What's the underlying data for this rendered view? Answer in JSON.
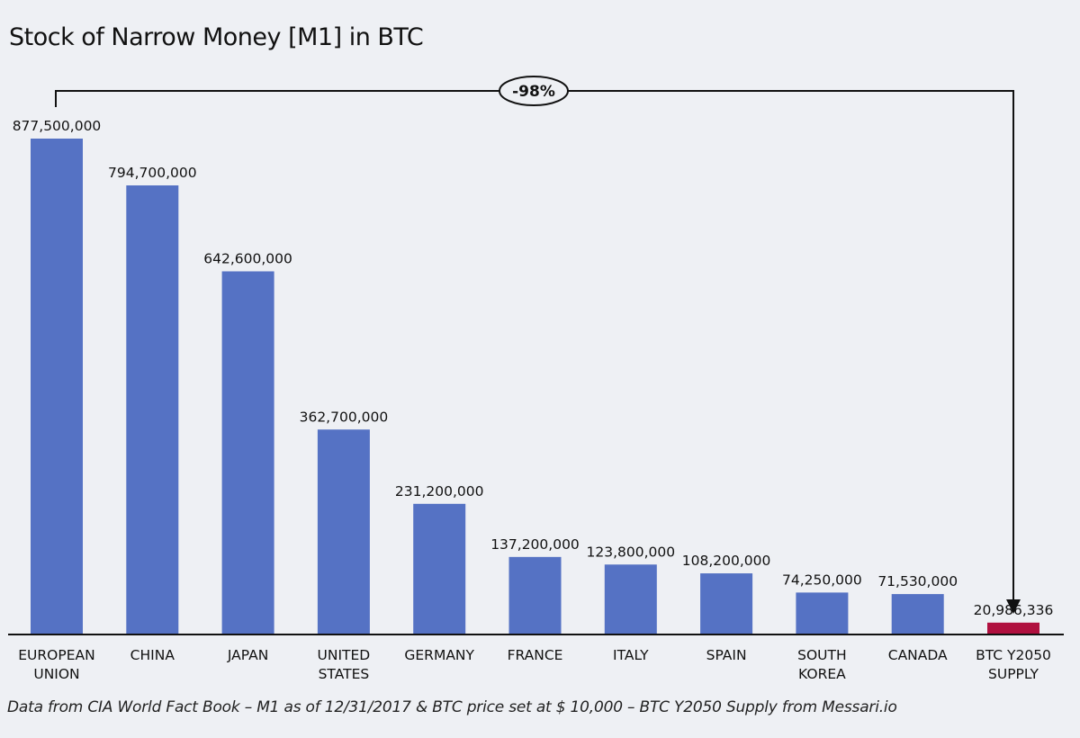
{
  "chart_data": {
    "type": "bar",
    "title": "Stock of Narrow Money [M1] in BTC",
    "categories": [
      [
        "EUROPEAN",
        "UNION"
      ],
      [
        "CHINA"
      ],
      [
        "JAPAN"
      ],
      [
        "UNITED",
        "STATES"
      ],
      [
        "GERMANY"
      ],
      [
        "FRANCE"
      ],
      [
        "ITALY"
      ],
      [
        "SPAIN"
      ],
      [
        "SOUTH",
        "KOREA"
      ],
      [
        "CANADA"
      ],
      [
        "BTC Y2050",
        "SUPPLY"
      ]
    ],
    "values": [
      877500000,
      794700000,
      642600000,
      362700000,
      231200000,
      137200000,
      123800000,
      108200000,
      74250000,
      71530000,
      20986336
    ],
    "data_labels": [
      "877,500,000",
      "794,700,000",
      "642,600,000",
      "362,700,000",
      "231,200,000",
      "137,200,000",
      "123,800,000",
      "108,200,000",
      "74,250,000",
      "71,530,000",
      "20,986,336"
    ],
    "colors": [
      "#5572c4",
      "#5572c4",
      "#5572c4",
      "#5572c4",
      "#5572c4",
      "#5572c4",
      "#5572c4",
      "#5572c4",
      "#5572c4",
      "#5572c4",
      "#b0103f"
    ],
    "ylim": [
      0,
      877500000
    ],
    "grid": false,
    "annotation": {
      "label": "-98%",
      "from": "EUROPEAN UNION",
      "to": "BTC Y2050 SUPPLY"
    },
    "xlabel": "",
    "ylabel": ""
  },
  "footnote": "Data from CIA World Fact Book – M1 as of 12/31/2017 & BTC price set at $ 10,000 – BTC Y2050 Supply from Messari.io"
}
